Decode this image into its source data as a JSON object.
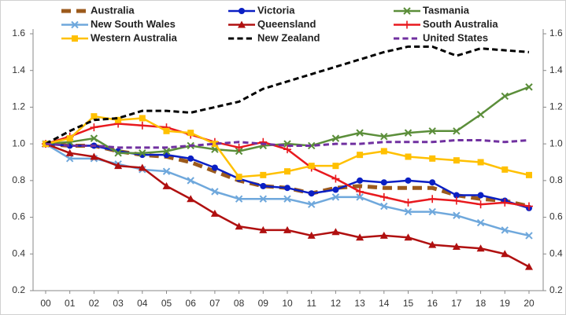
{
  "chart_data": {
    "type": "line",
    "categories": [
      "00",
      "01",
      "02",
      "03",
      "04",
      "05",
      "06",
      "07",
      "08",
      "09",
      "10",
      "11",
      "12",
      "13",
      "14",
      "15",
      "16",
      "17",
      "18",
      "19",
      "20"
    ],
    "series": [
      {
        "name": "Australia",
        "color": "#9c5a1c",
        "dash": "dashed",
        "marker": "none",
        "values": [
          1.0,
          0.99,
          0.99,
          0.96,
          0.94,
          0.93,
          0.9,
          0.85,
          0.8,
          0.77,
          0.76,
          0.73,
          0.76,
          0.77,
          0.76,
          0.76,
          0.76,
          0.72,
          0.7,
          0.69,
          0.66
        ]
      },
      {
        "name": "Victoria",
        "color": "#0a1fc4",
        "dash": "solid",
        "marker": "circle",
        "values": [
          1.0,
          0.99,
          0.99,
          0.96,
          0.94,
          0.94,
          0.92,
          0.87,
          0.81,
          0.77,
          0.76,
          0.73,
          0.75,
          0.8,
          0.79,
          0.8,
          0.79,
          0.72,
          0.72,
          0.69,
          0.65
        ]
      },
      {
        "name": "Tasmania",
        "color": "#5b8e3a",
        "dash": "solid",
        "marker": "x",
        "values": [
          1.0,
          1.01,
          1.03,
          0.95,
          0.95,
          0.96,
          0.99,
          0.97,
          0.96,
          0.99,
          1.0,
          0.99,
          1.03,
          1.06,
          1.04,
          1.06,
          1.07,
          1.07,
          1.16,
          1.26,
          1.31
        ]
      },
      {
        "name": "New South Wales",
        "color": "#6fa8dc",
        "dash": "solid",
        "marker": "x",
        "values": [
          1.0,
          0.92,
          0.92,
          0.89,
          0.86,
          0.85,
          0.8,
          0.74,
          0.7,
          0.7,
          0.7,
          0.67,
          0.71,
          0.71,
          0.66,
          0.63,
          0.63,
          0.61,
          0.57,
          0.53,
          0.5
        ]
      },
      {
        "name": "Queensland",
        "color": "#b01010",
        "dash": "solid",
        "marker": "triangle",
        "values": [
          1.0,
          0.95,
          0.93,
          0.88,
          0.87,
          0.77,
          0.7,
          0.62,
          0.55,
          0.53,
          0.53,
          0.5,
          0.52,
          0.49,
          0.5,
          0.49,
          0.45,
          0.44,
          0.43,
          0.4,
          0.33
        ]
      },
      {
        "name": "South Australia",
        "color": "#e8191e",
        "dash": "solid",
        "marker": "plus",
        "values": [
          1.0,
          1.04,
          1.09,
          1.11,
          1.1,
          1.09,
          1.05,
          1.01,
          0.98,
          1.01,
          0.97,
          0.87,
          0.81,
          0.74,
          0.71,
          0.68,
          0.7,
          0.69,
          0.67,
          0.68,
          0.66
        ]
      },
      {
        "name": "Western Australia",
        "color": "#ffc000",
        "dash": "solid",
        "marker": "square",
        "values": [
          1.0,
          1.03,
          1.15,
          1.13,
          1.14,
          1.07,
          1.06,
          1.0,
          0.82,
          0.83,
          0.85,
          0.88,
          0.88,
          0.94,
          0.96,
          0.93,
          0.92,
          0.91,
          0.9,
          0.86,
          0.83
        ]
      },
      {
        "name": "New Zealand",
        "color": "#000000",
        "dash": "dashed",
        "marker": "none",
        "values": [
          1.0,
          1.07,
          1.13,
          1.14,
          1.18,
          1.18,
          1.17,
          1.2,
          1.23,
          1.3,
          1.34,
          1.38,
          1.42,
          1.46,
          1.5,
          1.53,
          1.53,
          1.48,
          1.52,
          1.51,
          1.5
        ]
      },
      {
        "name": "United States",
        "color": "#7030a0",
        "dash": "dashed",
        "marker": "none",
        "values": [
          1.0,
          0.99,
          0.99,
          0.98,
          0.98,
          0.98,
          0.99,
          1.0,
          1.01,
          1.0,
          0.99,
          0.99,
          1.0,
          1.0,
          1.01,
          1.01,
          1.01,
          1.02,
          1.02,
          1.01,
          1.02
        ]
      }
    ],
    "ylim": [
      0.2,
      1.6
    ],
    "yticks": [
      0.2,
      0.4,
      0.6,
      0.8,
      {
        "value": 1.0,
        "label": "1.0"
      },
      1.2,
      1.4,
      1.6
    ],
    "y2lim": [
      0.2,
      1.6
    ],
    "y2ticks": [
      0.2,
      0.4,
      0.6,
      0.8,
      {
        "value": 1.0,
        "label": "1.0"
      },
      1.2,
      1.4,
      1.6
    ],
    "grid": false
  }
}
